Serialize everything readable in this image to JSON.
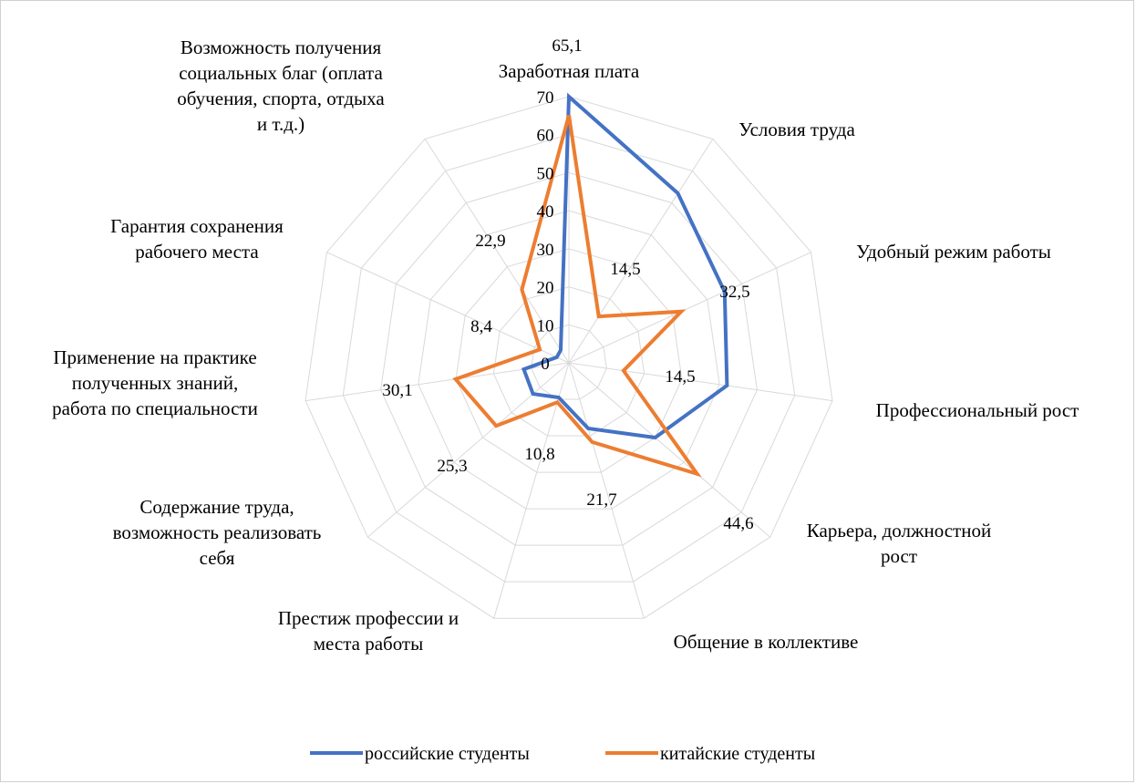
{
  "chart_data": {
    "type": "radar",
    "title": "",
    "categories": [
      [
        "Заработная плата"
      ],
      [
        "Условия труда"
      ],
      [
        "Удобный режим работы"
      ],
      [
        "Профессиональный рост"
      ],
      [
        "Карьера, должностной",
        "рост"
      ],
      [
        "Общение в коллективе"
      ],
      [
        "Престиж профессии и",
        "места работы"
      ],
      [
        "Содержание труда,",
        "возможность реализовать",
        "себя"
      ],
      [
        "Применение на практике",
        "полученных знаний,",
        "работа по специальности"
      ],
      [
        "Гарантия сохранения",
        "рабочего места"
      ],
      [
        "Возможность получения",
        "социальных благ (оплата",
        "обучения, спорта, отдыха",
        "и т.д.)"
      ]
    ],
    "rlim": [
      0,
      70
    ],
    "ticks": [
      "0",
      "10",
      "20",
      "30",
      "40",
      "50",
      "60",
      "70"
    ],
    "series": [
      {
        "name": "российские студенты",
        "color": "#4472C4",
        "values": [
          70,
          53,
          45,
          42,
          30,
          18,
          9.5,
          12.5,
          12,
          3.5,
          4
        ]
      },
      {
        "name": "китайские студенты",
        "color": "#ED7D31",
        "values": [
          65.1,
          14.5,
          32.5,
          14.5,
          44.6,
          21.7,
          10.8,
          25.3,
          30.1,
          8.4,
          22.9
        ],
        "labels": [
          "65,1",
          "14,5",
          "32,5",
          "14,5",
          "44,6",
          "21,7",
          "10,8",
          "25,3",
          "30,1",
          "8,4",
          "22,9"
        ]
      }
    ],
    "grid": true,
    "legend": "bottom"
  }
}
